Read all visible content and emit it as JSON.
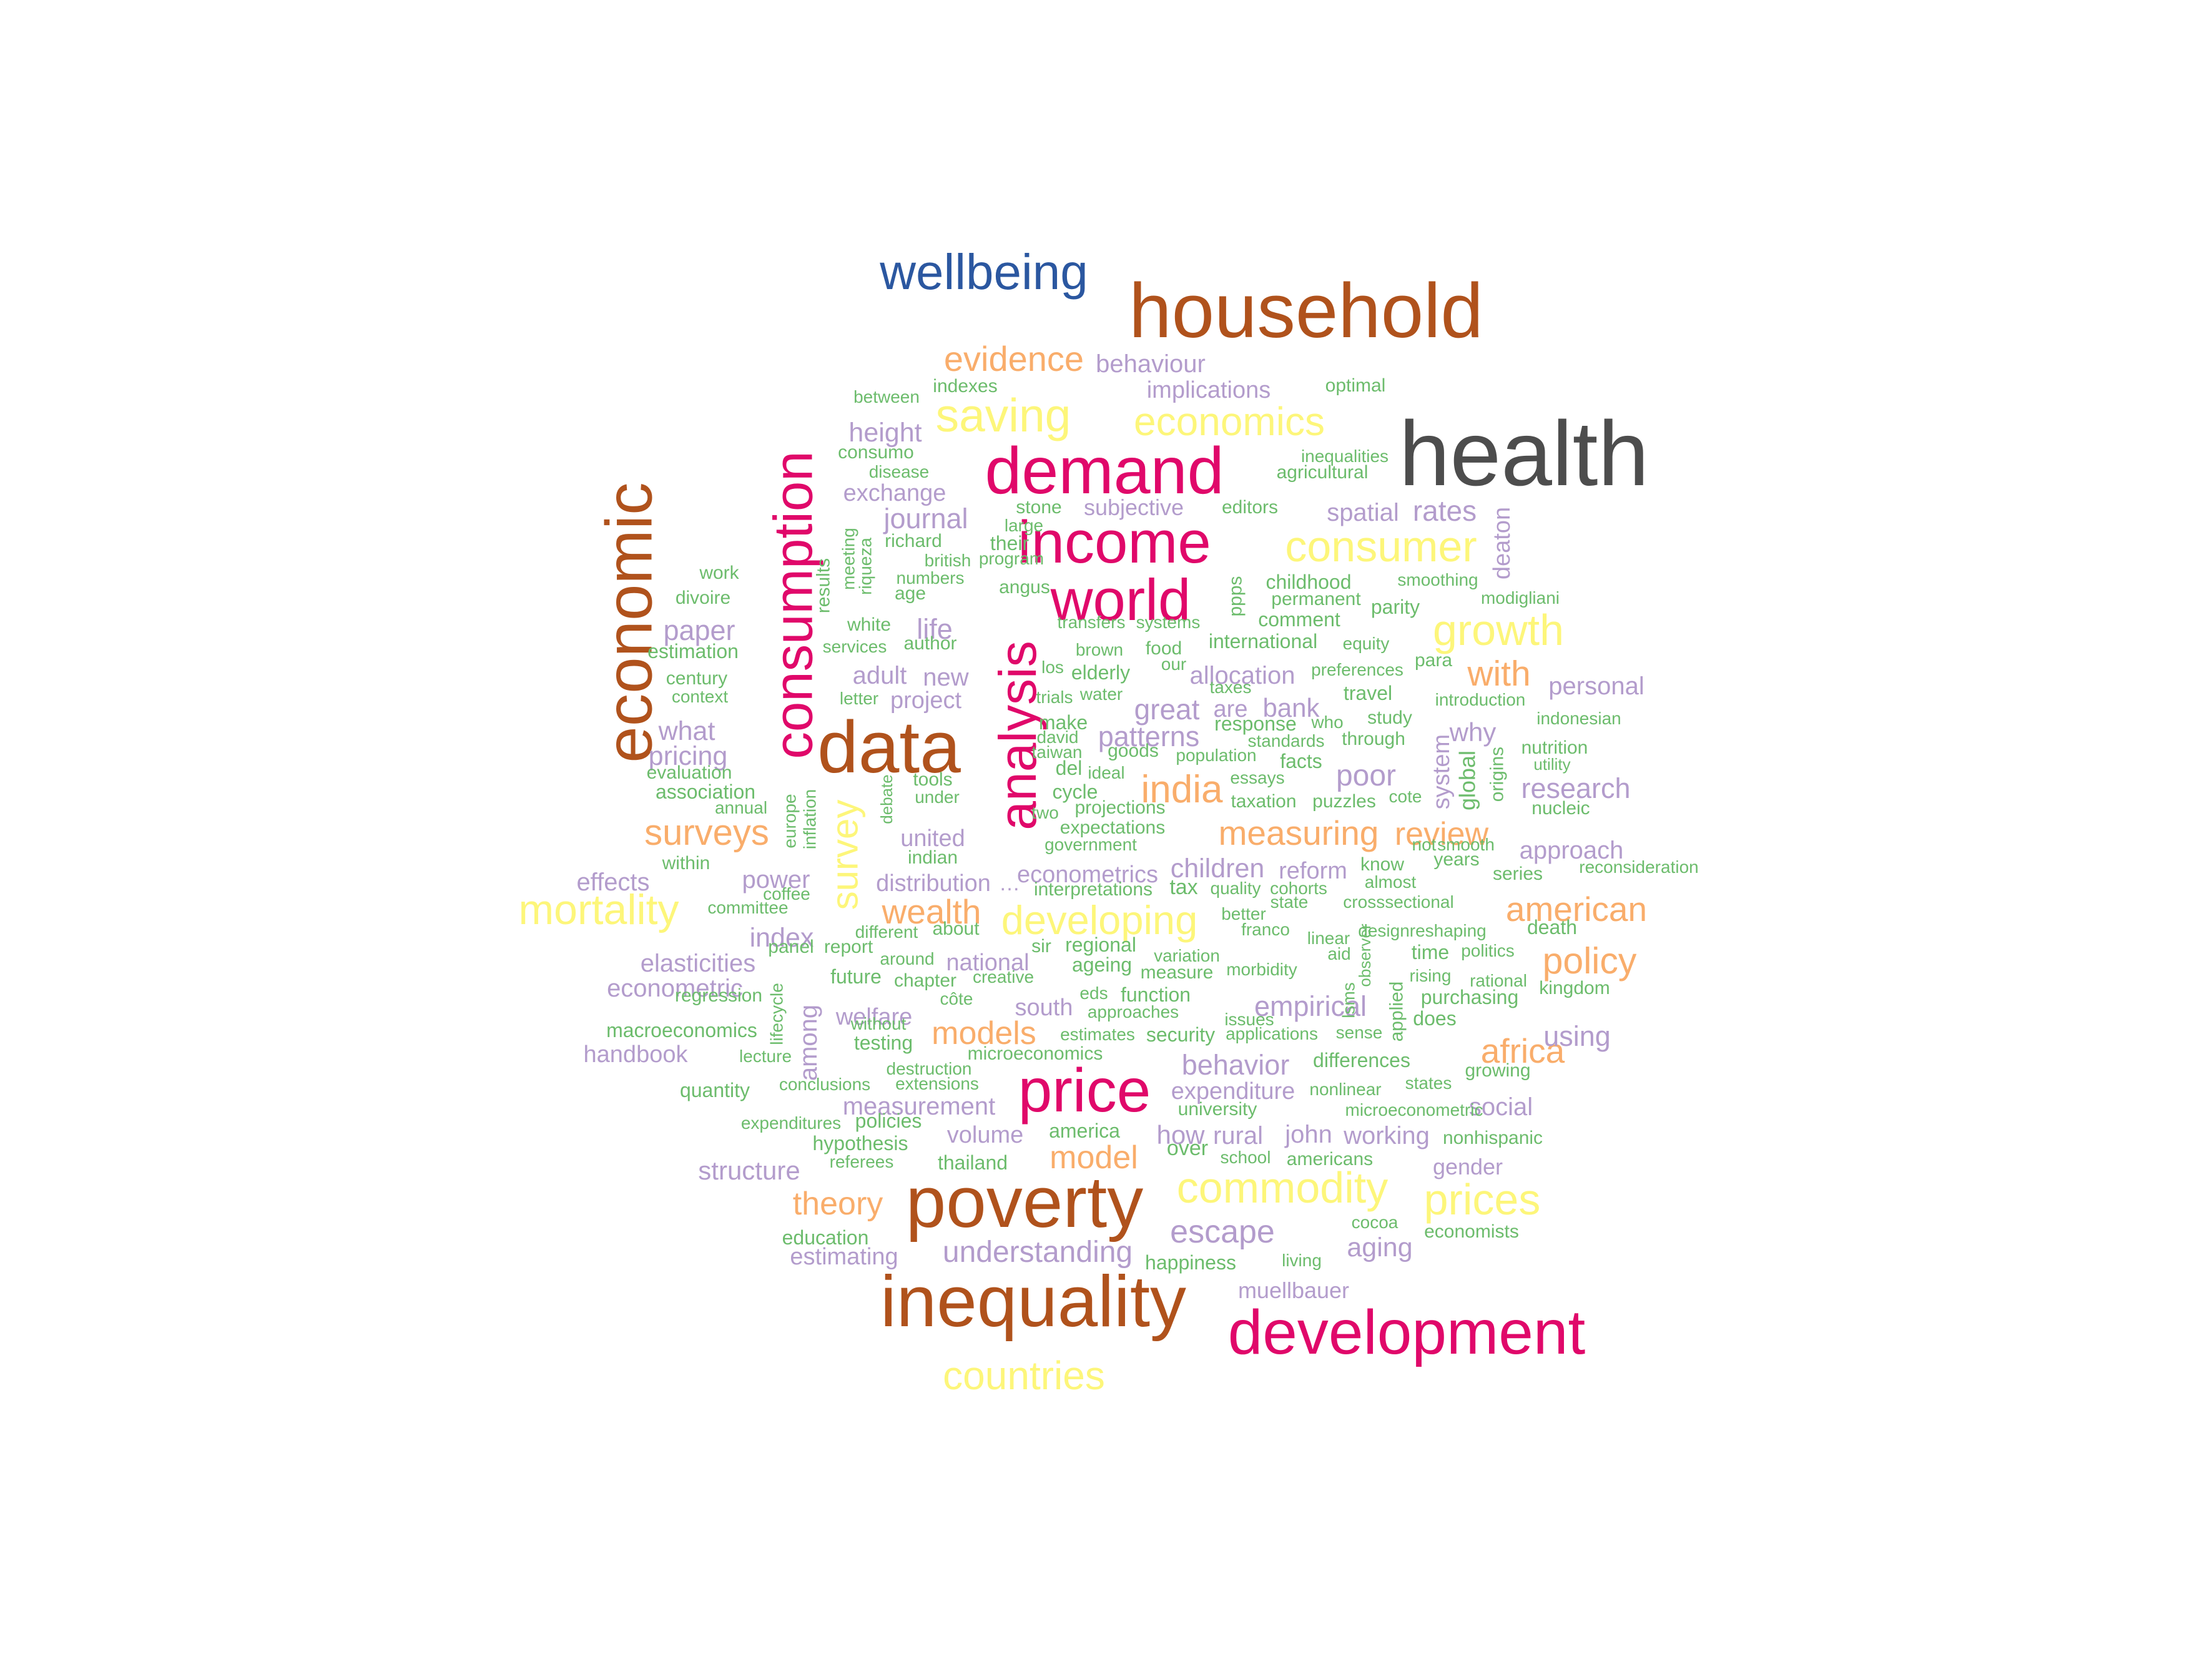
{
  "palette": {
    "gray": "#4d4d4d",
    "blue": "#2b57a0",
    "brown": "#b0521c",
    "magenta": "#e0086a",
    "yellow": "#fdf67a",
    "orange": "#f9ad6b",
    "purple": "#b39ccc",
    "green": "#6cbc6c"
  },
  "words": [
    {
      "text": "health",
      "color": "gray"
    },
    {
      "text": "wellbeing",
      "color": "blue"
    },
    {
      "text": "household",
      "color": "brown"
    },
    {
      "text": "economic",
      "color": "brown"
    },
    {
      "text": "data",
      "color": "brown"
    },
    {
      "text": "poverty",
      "color": "brown"
    },
    {
      "text": "inequality",
      "color": "brown"
    },
    {
      "text": "demand",
      "color": "magenta"
    },
    {
      "text": "income",
      "color": "magenta"
    },
    {
      "text": "world",
      "color": "magenta"
    },
    {
      "text": "consumption",
      "color": "magenta"
    },
    {
      "text": "analysis",
      "color": "magenta"
    },
    {
      "text": "price",
      "color": "magenta"
    },
    {
      "text": "development",
      "color": "magenta"
    },
    {
      "text": "saving",
      "color": "yellow"
    },
    {
      "text": "economics",
      "color": "yellow"
    },
    {
      "text": "consumer",
      "color": "yellow"
    },
    {
      "text": "growth",
      "color": "yellow"
    },
    {
      "text": "mortality",
      "color": "yellow"
    },
    {
      "text": "developing",
      "color": "yellow"
    },
    {
      "text": "survey",
      "color": "yellow"
    },
    {
      "text": "commodity",
      "color": "yellow"
    },
    {
      "text": "prices",
      "color": "yellow"
    },
    {
      "text": "countries",
      "color": "yellow"
    },
    {
      "text": "evidence",
      "color": "orange"
    },
    {
      "text": "with",
      "color": "orange"
    },
    {
      "text": "india",
      "color": "orange"
    },
    {
      "text": "surveys",
      "color": "orange"
    },
    {
      "text": "measuring",
      "color": "orange"
    },
    {
      "text": "review",
      "color": "orange"
    },
    {
      "text": "wealth",
      "color": "orange"
    },
    {
      "text": "american",
      "color": "orange"
    },
    {
      "text": "policy",
      "color": "orange"
    },
    {
      "text": "models",
      "color": "orange"
    },
    {
      "text": "africa",
      "color": "orange"
    },
    {
      "text": "model",
      "color": "orange"
    },
    {
      "text": "theory",
      "color": "orange"
    },
    {
      "text": "behaviour",
      "color": "purple"
    },
    {
      "text": "implications",
      "color": "purple"
    },
    {
      "text": "height",
      "color": "purple"
    },
    {
      "text": "exchange",
      "color": "purple"
    },
    {
      "text": "journal",
      "color": "purple"
    },
    {
      "text": "subjective",
      "color": "purple"
    },
    {
      "text": "spatial",
      "color": "purple"
    },
    {
      "text": "rates",
      "color": "purple"
    },
    {
      "text": "deaton",
      "color": "purple"
    },
    {
      "text": "paper",
      "color": "purple"
    },
    {
      "text": "life",
      "color": "purple"
    },
    {
      "text": "adult",
      "color": "purple"
    },
    {
      "text": "new",
      "color": "purple"
    },
    {
      "text": "project",
      "color": "purple"
    },
    {
      "text": "allocation",
      "color": "purple"
    },
    {
      "text": "great",
      "color": "purple"
    },
    {
      "text": "are",
      "color": "purple"
    },
    {
      "text": "bank",
      "color": "purple"
    },
    {
      "text": "personal",
      "color": "purple"
    },
    {
      "text": "what",
      "color": "purple"
    },
    {
      "text": "pricing",
      "color": "purple"
    },
    {
      "text": "patterns",
      "color": "purple"
    },
    {
      "text": "why",
      "color": "purple"
    },
    {
      "text": "system",
      "color": "purple"
    },
    {
      "text": "poor",
      "color": "purple"
    },
    {
      "text": "research",
      "color": "purple"
    },
    {
      "text": "united",
      "color": "purple"
    },
    {
      "text": "approach",
      "color": "purple"
    },
    {
      "text": "effects",
      "color": "purple"
    },
    {
      "text": "power",
      "color": "purple"
    },
    {
      "text": "distribution",
      "color": "purple"
    },
    {
      "text": "econometrics",
      "color": "purple"
    },
    {
      "text": "children",
      "color": "purple"
    },
    {
      "text": "reform",
      "color": "purple"
    },
    {
      "text": "index",
      "color": "purple"
    },
    {
      "text": "elasticities",
      "color": "purple"
    },
    {
      "text": "econometric",
      "color": "purple"
    },
    {
      "text": "national",
      "color": "purple"
    },
    {
      "text": "among",
      "color": "purple"
    },
    {
      "text": "welfare",
      "color": "purple"
    },
    {
      "text": "south",
      "color": "purple"
    },
    {
      "text": "empirical",
      "color": "purple"
    },
    {
      "text": "handbook",
      "color": "purple"
    },
    {
      "text": "behavior",
      "color": "purple"
    },
    {
      "text": "using",
      "color": "purple"
    },
    {
      "text": "measurement",
      "color": "purple"
    },
    {
      "text": "expenditure",
      "color": "purple"
    },
    {
      "text": "volume",
      "color": "purple"
    },
    {
      "text": "how",
      "color": "purple"
    },
    {
      "text": "rural",
      "color": "purple"
    },
    {
      "text": "john",
      "color": "purple"
    },
    {
      "text": "working",
      "color": "purple"
    },
    {
      "text": "structure",
      "color": "purple"
    },
    {
      "text": "escape",
      "color": "purple"
    },
    {
      "text": "social",
      "color": "purple"
    },
    {
      "text": "gender",
      "color": "purple"
    },
    {
      "text": "understanding",
      "color": "purple"
    },
    {
      "text": "aging",
      "color": "purple"
    },
    {
      "text": "estimating",
      "color": "purple"
    },
    {
      "text": "muellbauer",
      "color": "purple"
    },
    {
      "text": "indexes",
      "color": "green"
    },
    {
      "text": "between",
      "color": "green"
    },
    {
      "text": "optimal",
      "color": "green"
    },
    {
      "text": "consumo",
      "color": "green"
    },
    {
      "text": "disease",
      "color": "green"
    },
    {
      "text": "inequalities",
      "color": "green"
    },
    {
      "text": "agricultural",
      "color": "green"
    },
    {
      "text": "stone",
      "color": "green"
    },
    {
      "text": "large",
      "color": "green"
    },
    {
      "text": "editors",
      "color": "green"
    },
    {
      "text": "richard",
      "color": "green"
    },
    {
      "text": "their",
      "color": "green"
    },
    {
      "text": "program",
      "color": "green"
    },
    {
      "text": "british",
      "color": "green"
    },
    {
      "text": "numbers",
      "color": "green"
    },
    {
      "text": "age",
      "color": "green"
    },
    {
      "text": "angus",
      "color": "green"
    },
    {
      "text": "work",
      "color": "green"
    },
    {
      "text": "divoire",
      "color": "green"
    },
    {
      "text": "results",
      "color": "green"
    },
    {
      "text": "meeting",
      "color": "green"
    },
    {
      "text": "riqueza",
      "color": "green"
    },
    {
      "text": "childhood",
      "color": "green"
    },
    {
      "text": "smoothing",
      "color": "green"
    },
    {
      "text": "permanent",
      "color": "green"
    },
    {
      "text": "modigliani",
      "color": "green"
    },
    {
      "text": "ppps",
      "color": "green"
    },
    {
      "text": "white",
      "color": "green"
    },
    {
      "text": "author",
      "color": "green"
    },
    {
      "text": "transfers",
      "color": "green"
    },
    {
      "text": "systems",
      "color": "green"
    },
    {
      "text": "comment",
      "color": "green"
    },
    {
      "text": "parity",
      "color": "green"
    },
    {
      "text": "estimation",
      "color": "green"
    },
    {
      "text": "services",
      "color": "green"
    },
    {
      "text": "brown",
      "color": "green"
    },
    {
      "text": "food",
      "color": "green"
    },
    {
      "text": "international",
      "color": "green"
    },
    {
      "text": "equity",
      "color": "green"
    },
    {
      "text": "century",
      "color": "green"
    },
    {
      "text": "los",
      "color": "green"
    },
    {
      "text": "our",
      "color": "green"
    },
    {
      "text": "preferences",
      "color": "green"
    },
    {
      "text": "para",
      "color": "green"
    },
    {
      "text": "context",
      "color": "green"
    },
    {
      "text": "elderly",
      "color": "green"
    },
    {
      "text": "taxes",
      "color": "green"
    },
    {
      "text": "letter",
      "color": "green"
    },
    {
      "text": "trials",
      "color": "green"
    },
    {
      "text": "water",
      "color": "green"
    },
    {
      "text": "travel",
      "color": "green"
    },
    {
      "text": "introduction",
      "color": "green"
    },
    {
      "text": "response",
      "color": "green"
    },
    {
      "text": "who",
      "color": "green"
    },
    {
      "text": "study",
      "color": "green"
    },
    {
      "text": "indonesian",
      "color": "green"
    },
    {
      "text": "make",
      "color": "green"
    },
    {
      "text": "david",
      "color": "green"
    },
    {
      "text": "standards",
      "color": "green"
    },
    {
      "text": "through",
      "color": "green"
    },
    {
      "text": "nutrition",
      "color": "green"
    },
    {
      "text": "evaluation",
      "color": "green"
    },
    {
      "text": "taiwan",
      "color": "green"
    },
    {
      "text": "goods",
      "color": "green"
    },
    {
      "text": "population",
      "color": "green"
    },
    {
      "text": "facts",
      "color": "green"
    },
    {
      "text": "utility",
      "color": "green"
    },
    {
      "text": "association",
      "color": "green"
    },
    {
      "text": "tools",
      "color": "green"
    },
    {
      "text": "del",
      "color": "green"
    },
    {
      "text": "ideal",
      "color": "green"
    },
    {
      "text": "essays",
      "color": "green"
    },
    {
      "text": "global",
      "color": "green"
    },
    {
      "text": "origins",
      "color": "green"
    },
    {
      "text": "annual",
      "color": "green"
    },
    {
      "text": "europe",
      "color": "green"
    },
    {
      "text": "inflation",
      "color": "green"
    },
    {
      "text": "debate",
      "color": "green"
    },
    {
      "text": "under",
      "color": "green"
    },
    {
      "text": "cycle",
      "color": "green"
    },
    {
      "text": "taxation",
      "color": "green"
    },
    {
      "text": "puzzles",
      "color": "green"
    },
    {
      "text": "cote",
      "color": "green"
    },
    {
      "text": "nucleic",
      "color": "green"
    },
    {
      "text": "two",
      "color": "green"
    },
    {
      "text": "projections",
      "color": "green"
    },
    {
      "text": "expectations",
      "color": "green"
    },
    {
      "text": "government",
      "color": "green"
    },
    {
      "text": "not",
      "color": "green"
    },
    {
      "text": "smooth",
      "color": "green"
    },
    {
      "text": "years",
      "color": "green"
    },
    {
      "text": "within",
      "color": "green"
    },
    {
      "text": "indian",
      "color": "green"
    },
    {
      "text": "know",
      "color": "green"
    },
    {
      "text": "reconsideration",
      "color": "green"
    },
    {
      "text": "series",
      "color": "green"
    },
    {
      "text": "committee",
      "color": "green"
    },
    {
      "text": "coffee",
      "color": "green"
    },
    {
      "text": "…",
      "color": "purple"
    },
    {
      "text": "interpretations",
      "color": "green"
    },
    {
      "text": "tax",
      "color": "green"
    },
    {
      "text": "quality",
      "color": "green"
    },
    {
      "text": "cohorts",
      "color": "green"
    },
    {
      "text": "almost",
      "color": "green"
    },
    {
      "text": "state",
      "color": "green"
    },
    {
      "text": "crosssectional",
      "color": "green"
    },
    {
      "text": "better",
      "color": "green"
    },
    {
      "text": "panel",
      "color": "green"
    },
    {
      "text": "different",
      "color": "green"
    },
    {
      "text": "about",
      "color": "green"
    },
    {
      "text": "franco",
      "color": "green"
    },
    {
      "text": "designreshaping",
      "color": "green"
    },
    {
      "text": "death",
      "color": "green"
    },
    {
      "text": "report",
      "color": "green"
    },
    {
      "text": "around",
      "color": "green"
    },
    {
      "text": "sir",
      "color": "green"
    },
    {
      "text": "regional",
      "color": "green"
    },
    {
      "text": "linear",
      "color": "green"
    },
    {
      "text": "observer",
      "color": "green"
    },
    {
      "text": "aid",
      "color": "green"
    },
    {
      "text": "time",
      "color": "green"
    },
    {
      "text": "politics",
      "color": "green"
    },
    {
      "text": "variation",
      "color": "green"
    },
    {
      "text": "regression",
      "color": "green"
    },
    {
      "text": "future",
      "color": "green"
    },
    {
      "text": "chapter",
      "color": "green"
    },
    {
      "text": "creative",
      "color": "green"
    },
    {
      "text": "ageing",
      "color": "green"
    },
    {
      "text": "measure",
      "color": "green"
    },
    {
      "text": "morbidity",
      "color": "green"
    },
    {
      "text": "lifecycle",
      "color": "green"
    },
    {
      "text": "côte",
      "color": "green"
    },
    {
      "text": "eds",
      "color": "green"
    },
    {
      "text": "function",
      "color": "green"
    },
    {
      "text": "rising",
      "color": "green"
    },
    {
      "text": "rational",
      "color": "green"
    },
    {
      "text": "kingdom",
      "color": "green"
    },
    {
      "text": "without",
      "color": "green"
    },
    {
      "text": "approaches",
      "color": "green"
    },
    {
      "text": "issues",
      "color": "green"
    },
    {
      "text": "lsms",
      "color": "green"
    },
    {
      "text": "applied",
      "color": "green"
    },
    {
      "text": "purchasing",
      "color": "green"
    },
    {
      "text": "macroeconomics",
      "color": "green"
    },
    {
      "text": "testing",
      "color": "green"
    },
    {
      "text": "estimates",
      "color": "green"
    },
    {
      "text": "security",
      "color": "green"
    },
    {
      "text": "applications",
      "color": "green"
    },
    {
      "text": "sense",
      "color": "green"
    },
    {
      "text": "does",
      "color": "green"
    },
    {
      "text": "lecture",
      "color": "green"
    },
    {
      "text": "microeconomics",
      "color": "green"
    },
    {
      "text": "differences",
      "color": "green"
    },
    {
      "text": "destruction",
      "color": "green"
    },
    {
      "text": "growing",
      "color": "green"
    },
    {
      "text": "conclusions",
      "color": "green"
    },
    {
      "text": "extensions",
      "color": "green"
    },
    {
      "text": "states",
      "color": "green"
    },
    {
      "text": "quantity",
      "color": "green"
    },
    {
      "text": "nonlinear",
      "color": "green"
    },
    {
      "text": "university",
      "color": "green"
    },
    {
      "text": "microeconometric",
      "color": "green"
    },
    {
      "text": "expenditures",
      "color": "green"
    },
    {
      "text": "policies",
      "color": "green"
    },
    {
      "text": "america",
      "color": "green"
    },
    {
      "text": "nonhispanic",
      "color": "green"
    },
    {
      "text": "hypothesis",
      "color": "green"
    },
    {
      "text": "over",
      "color": "green"
    },
    {
      "text": "referees",
      "color": "green"
    },
    {
      "text": "thailand",
      "color": "green"
    },
    {
      "text": "school",
      "color": "green"
    },
    {
      "text": "americans",
      "color": "green"
    },
    {
      "text": "cocoa",
      "color": "green"
    },
    {
      "text": "education",
      "color": "green"
    },
    {
      "text": "economists",
      "color": "green"
    },
    {
      "text": "happiness",
      "color": "green"
    },
    {
      "text": "living",
      "color": "green"
    }
  ]
}
